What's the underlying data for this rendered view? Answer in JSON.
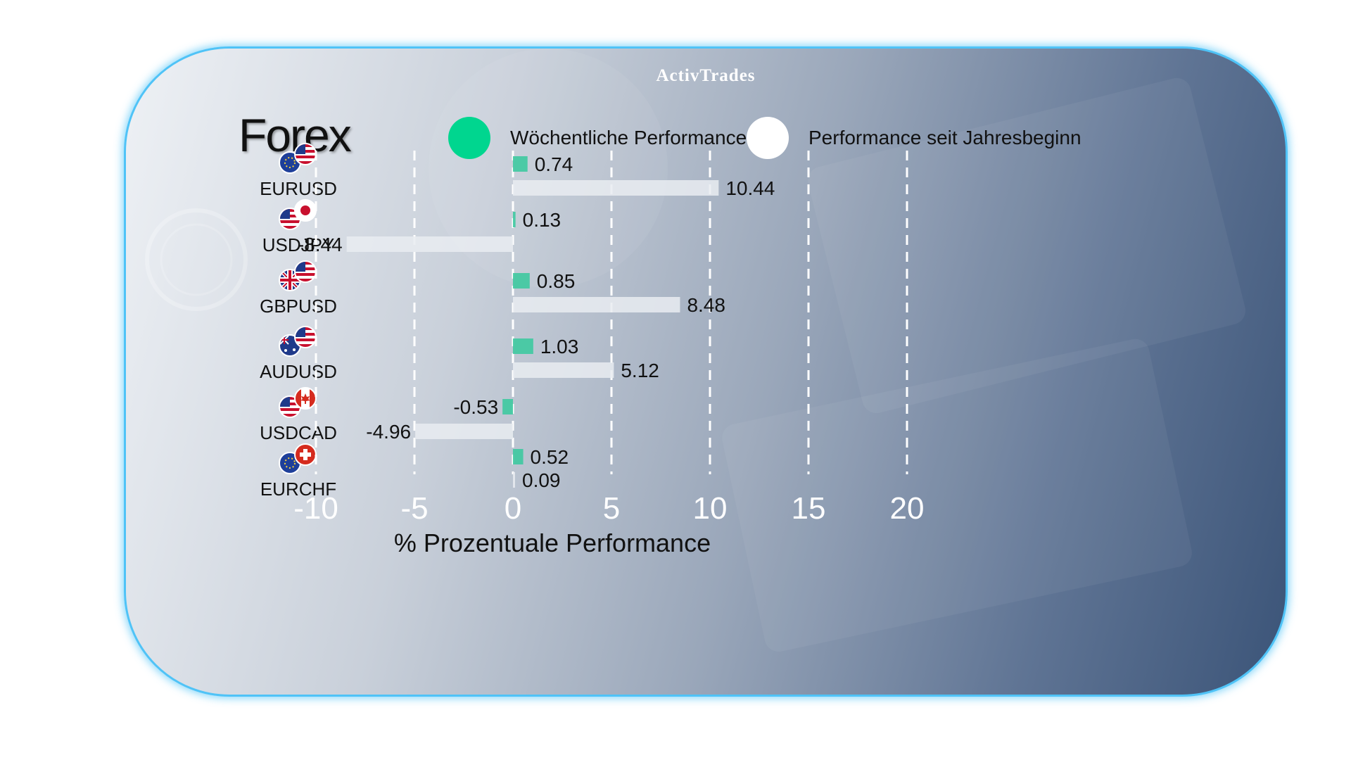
{
  "logo": "ActivTrades",
  "title": "Forex",
  "legend": [
    {
      "label": "Wöchentliche Performance",
      "color": "#3ec9a0"
    },
    {
      "label": "Performance seit Jahresbeginn",
      "color": "#ffffff"
    }
  ],
  "colors": {
    "weekly": "#3ec9a0",
    "ytd": "#e9ecf1",
    "border": "#4fc3f7",
    "grid": "#ffffff"
  },
  "pairs": [
    {
      "label": "EURUSD",
      "flags": [
        "eu-flag-icon",
        "us-flag-icon"
      ]
    },
    {
      "label": "USDJPY",
      "flags": [
        "us-flag-icon",
        "jp-flag-icon"
      ]
    },
    {
      "label": "GBPUSD",
      "flags": [
        "uk-flag-icon",
        "us-flag-icon"
      ]
    },
    {
      "label": "AUDUSD",
      "flags": [
        "au-flag-icon",
        "us-flag-icon"
      ]
    },
    {
      "label": "USDCAD",
      "flags": [
        "us-flag-icon",
        "ca-flag-icon"
      ]
    },
    {
      "label": "EURCHF",
      "flags": [
        "eu-flag-icon",
        "ch-flag-icon"
      ]
    }
  ],
  "chart_data": {
    "type": "bar",
    "orientation": "horizontal",
    "categories": [
      "EURUSD",
      "USDJPY",
      "GBPUSD",
      "AUDUSD",
      "USDCAD",
      "EURCHF"
    ],
    "series": [
      {
        "name": "Wöchentliche Performance",
        "values": [
          0.74,
          0.13,
          0.85,
          1.03,
          -0.53,
          0.52
        ]
      },
      {
        "name": "Performance seit Jahresbeginn",
        "values": [
          10.44,
          -8.44,
          8.48,
          5.12,
          -4.96,
          0.09
        ]
      }
    ],
    "value_labels": [
      [
        "0.74",
        "0.13",
        "0.85",
        "1.03",
        "-0.53",
        "0.52"
      ],
      [
        "10.44",
        "-8.44",
        "8.48",
        "5.12",
        "-4.96",
        "0.09"
      ]
    ],
    "xticks": [
      -10,
      -5,
      0,
      5,
      10,
      15,
      20
    ],
    "xtick_labels": [
      "-10",
      "-5",
      "0",
      "5",
      "10",
      "15",
      "20"
    ],
    "xlim": [
      -10,
      20
    ],
    "xlabel": "% Prozentuale Performance",
    "grid": "dashed vertical"
  }
}
